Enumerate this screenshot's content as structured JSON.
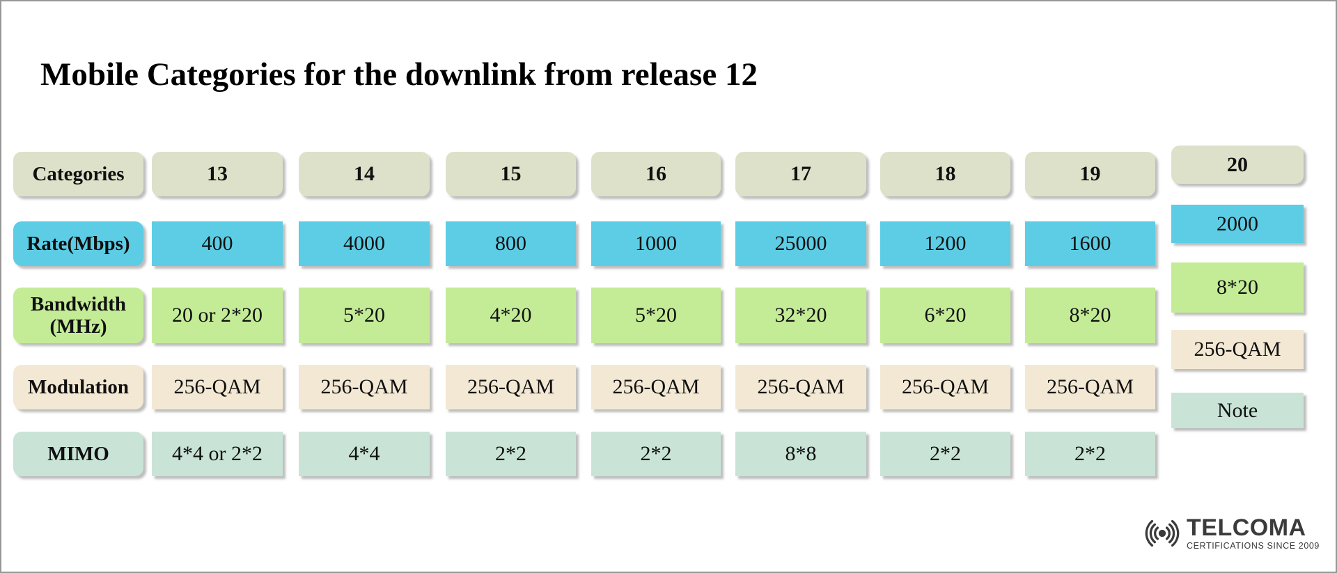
{
  "title": "Mobile Categories for the downlink from release 12",
  "colors": {
    "border": "#979797",
    "categories_header": "#dee1c9",
    "rate": "#5ccde5",
    "bandwidth": "#c4ec97",
    "modulation": "#f3e8d3",
    "mimo": "#c9e4d7",
    "text": "#101010",
    "logo": "#3b3b3b"
  },
  "table": {
    "corner_label": "Categories",
    "column_headers": [
      "13",
      "14",
      "15",
      "16",
      "17",
      "18",
      "19",
      "20"
    ],
    "rows": [
      {
        "label": "Rate(Mbps)",
        "color_key": "rate",
        "values": [
          "400",
          "4000",
          "800",
          "1000",
          "25000",
          "1200",
          "1600",
          "2000"
        ]
      },
      {
        "label": "Bandwidth (MHz)",
        "color_key": "bandwidth",
        "values": [
          "20 or 2*20",
          "5*20",
          "4*20",
          "5*20",
          "32*20",
          "6*20",
          "8*20",
          "8*20"
        ]
      },
      {
        "label": "Modulation",
        "color_key": "modulation",
        "values": [
          "256-QAM",
          "256-QAM",
          "256-QAM",
          "256-QAM",
          "256-QAM",
          "256-QAM",
          "256-QAM",
          "256-QAM"
        ]
      },
      {
        "label": "MIMO",
        "color_key": "mimo",
        "values": [
          "4*4 or 2*2",
          "4*4",
          "2*2",
          "2*2",
          "8*8",
          "2*2",
          "2*2",
          "Note"
        ]
      }
    ]
  },
  "chart_data": {
    "type": "table",
    "title": "Mobile Categories for the downlink from release 12",
    "columns": [
      "Categories",
      "13",
      "14",
      "15",
      "16",
      "17",
      "18",
      "19",
      "20"
    ],
    "rows": [
      [
        "Rate(Mbps)",
        "400",
        "4000",
        "800",
        "1000",
        "25000",
        "1200",
        "1600",
        "2000"
      ],
      [
        "Bandwidth (MHz)",
        "20 or 2*20",
        "5*20",
        "4*20",
        "5*20",
        "32*20",
        "6*20",
        "8*20",
        "8*20"
      ],
      [
        "Modulation",
        "256-QAM",
        "256-QAM",
        "256-QAM",
        "256-QAM",
        "256-QAM",
        "256-QAM",
        "256-QAM",
        "256-QAM"
      ],
      [
        "MIMO",
        "4*4 or 2*2",
        "4*4",
        "2*2",
        "2*2",
        "8*8",
        "2*2",
        "2*2",
        "Note"
      ]
    ]
  },
  "logo": {
    "brand": "TELCOMA",
    "tagline": "CERTIFICATIONS SINCE 2009"
  }
}
